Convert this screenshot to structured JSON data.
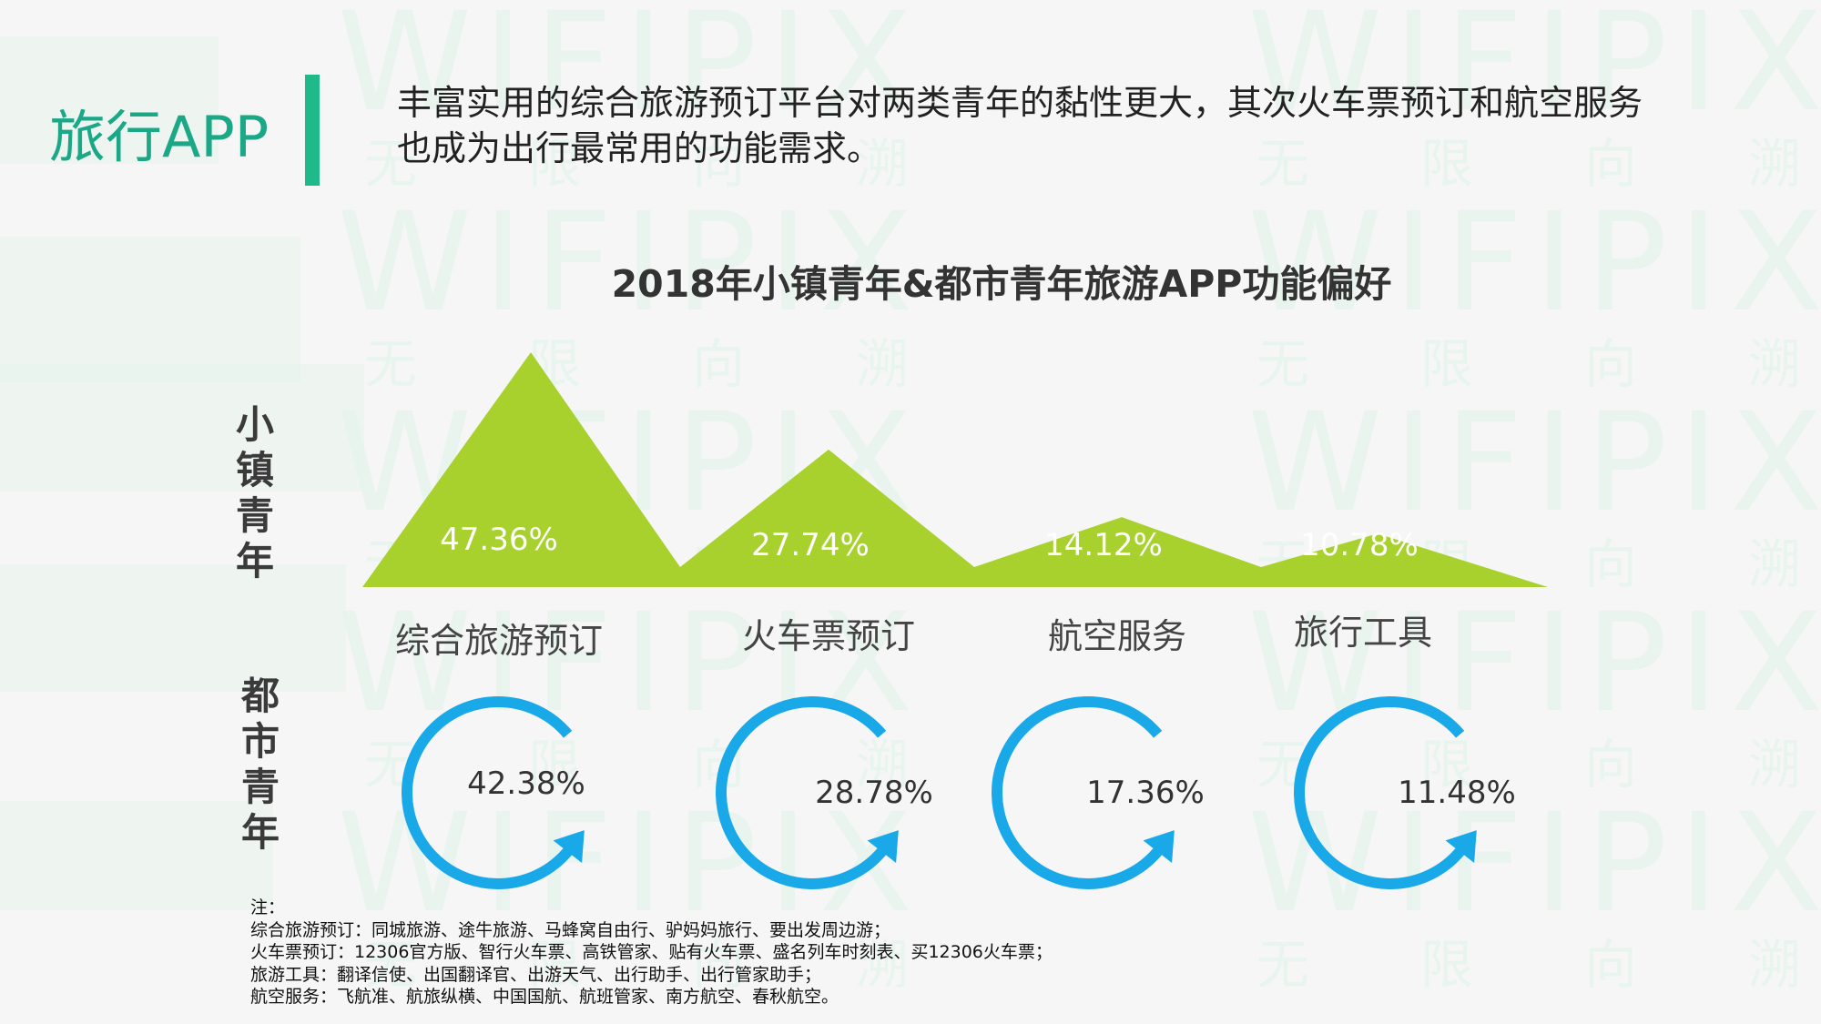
{
  "section_title": "旅行APP",
  "headline": "丰富实用的综合旅游预订平台对两类青年的黏性更大，其次火车票预订和航空服务也成为出行最常用的功能需求。",
  "colors": {
    "accent_green": "#1fb98a",
    "title_green": "#1aa887",
    "triangle_green": "#a8d12e",
    "arc_blue": "#1aa9e8",
    "watermark": "#e4f4ec"
  },
  "watermark": {
    "brand": "WIFIPIX",
    "cn": [
      "无",
      "限",
      "向",
      "溯"
    ]
  },
  "chart_data": {
    "type": "bar",
    "title": "2018年小镇青年&都市青年旅游APP功能偏好",
    "categories": [
      "综合旅游预订",
      "火车票预订",
      "航空服务",
      "旅行工具"
    ],
    "series": [
      {
        "name": "小镇青年",
        "values": [
          47.36,
          27.74,
          14.12,
          10.78
        ],
        "labels": [
          "47.36%",
          "27.74%",
          "14.12%",
          "10.78%"
        ]
      },
      {
        "name": "都市青年",
        "values": [
          42.38,
          28.78,
          17.36,
          11.48
        ],
        "labels": [
          "42.38%",
          "28.78%",
          "17.36%",
          "11.48%"
        ]
      }
    ]
  },
  "notes": [
    "注：",
    "综合旅游预订：同城旅游、途牛旅游、马蜂窝自由行、驴妈妈旅行、要出发周边游；",
    "火车票预订：12306官方版、智行火车票、高铁管家、贴有火车票、盛名列车时刻表、买12306火车票；",
    "旅游工具：翻译信使、出国翻译官、出游天气、出行助手、出行管家助手；",
    "航空服务：飞航准、航旅纵横、中国国航、航班管家、南方航空、春秋航空。"
  ]
}
